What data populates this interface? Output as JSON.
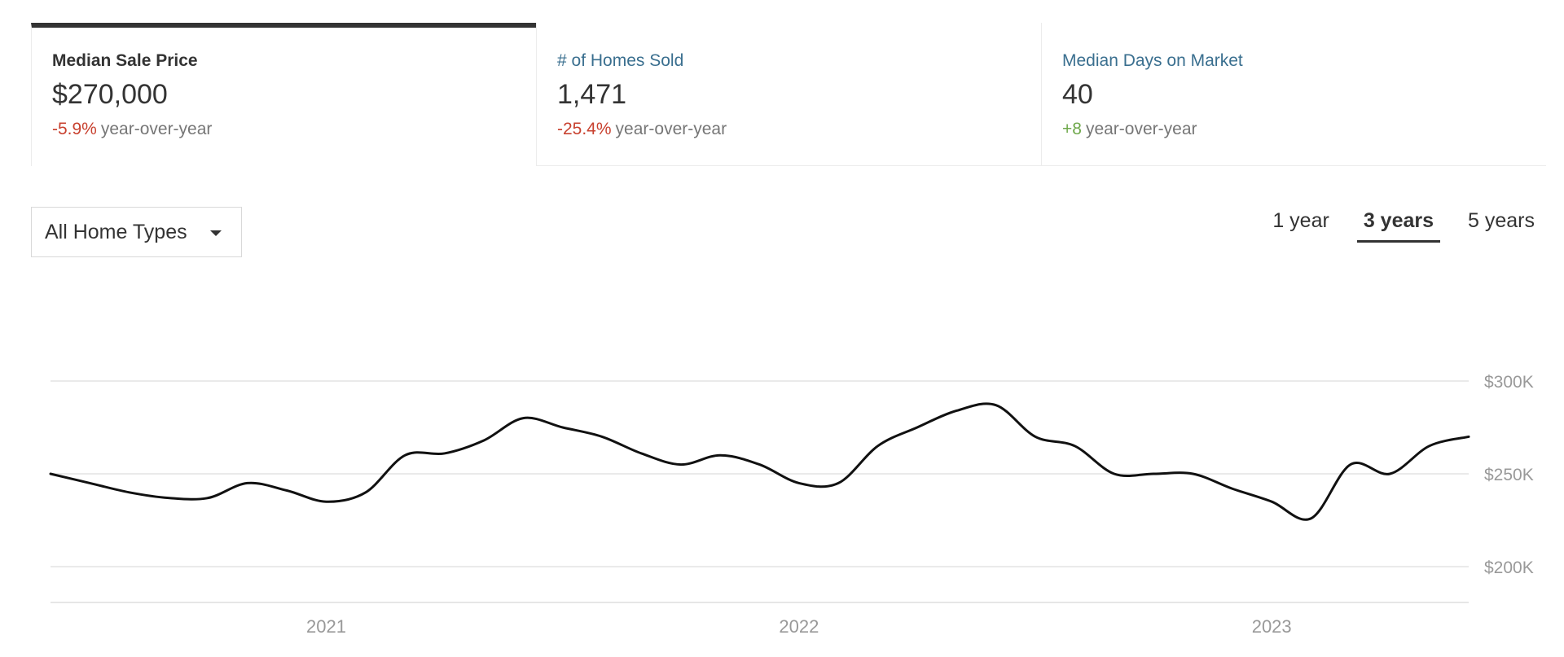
{
  "metrics": [
    {
      "title": "Median Sale Price",
      "value": "$270,000",
      "change": "-5.9%",
      "change_suffix": "year-over-year",
      "trend": "negative",
      "selected": true
    },
    {
      "title": "# of Homes Sold",
      "value": "1,471",
      "change": "-25.4%",
      "change_suffix": "year-over-year",
      "trend": "negative",
      "selected": false
    },
    {
      "title": "Median Days on Market",
      "value": "40",
      "change": "+8",
      "change_suffix": "year-over-year",
      "trend": "positive",
      "selected": false
    }
  ],
  "filter": {
    "home_type": "All Home Types"
  },
  "ranges": [
    {
      "label": "1 year",
      "selected": false
    },
    {
      "label": "3 years",
      "selected": true
    },
    {
      "label": "5 years",
      "selected": false
    }
  ],
  "colors": {
    "negative": "#c8412f",
    "positive": "#6ea84a",
    "link": "#3a6f8f",
    "line": "#111111",
    "grid": "#e3e3e3"
  },
  "chart_data": {
    "type": "line",
    "title": "",
    "xlabel": "",
    "ylabel": "",
    "x_ticks": [
      "2021",
      "2022",
      "2023"
    ],
    "y_ticks": [
      "$300K",
      "$250K",
      "$200K"
    ],
    "ylim": [
      200000,
      300000
    ],
    "grid": true,
    "series": [
      {
        "name": "",
        "x": [
          "2020-06",
          "2020-07",
          "2020-08",
          "2020-09",
          "2020-10",
          "2020-11",
          "2020-12",
          "2021-01",
          "2021-02",
          "2021-03",
          "2021-04",
          "2021-05",
          "2021-06",
          "2021-07",
          "2021-08",
          "2021-09",
          "2021-10",
          "2021-11",
          "2021-12",
          "2022-01",
          "2022-02",
          "2022-03",
          "2022-04",
          "2022-05",
          "2022-06",
          "2022-07",
          "2022-08",
          "2022-09",
          "2022-10",
          "2022-11",
          "2022-12",
          "2023-01",
          "2023-02",
          "2023-03",
          "2023-04",
          "2023-05",
          "2023-06"
        ],
        "values": [
          250000,
          245000,
          240000,
          237000,
          237000,
          245000,
          241000,
          235000,
          240000,
          260000,
          261000,
          268000,
          280000,
          275000,
          270000,
          261000,
          255000,
          260000,
          255000,
          245000,
          245000,
          265000,
          275000,
          284000,
          287000,
          270000,
          265000,
          250000,
          250000,
          250000,
          242000,
          235000,
          226000,
          255000,
          250000,
          265000,
          270000
        ]
      }
    ]
  }
}
